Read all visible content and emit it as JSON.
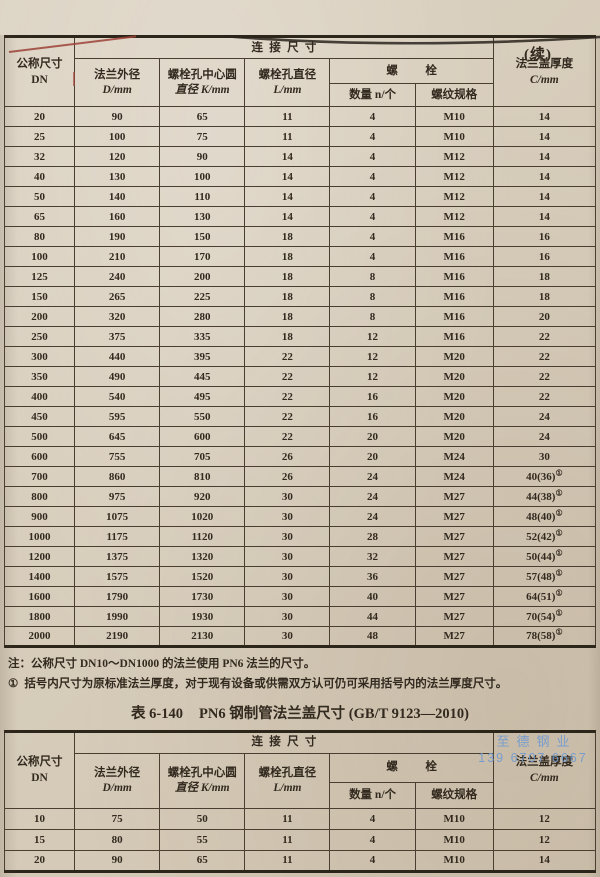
{
  "page": {
    "continued_label": "(续)"
  },
  "colors": {
    "paper": "#d6cbb9",
    "ink": "#332a1f",
    "border": "#4a3e30",
    "watermark_blue": "#6f9ad2",
    "artifact_red": "#9e4237"
  },
  "header_labels": {
    "nominal_l1": "公称尺寸",
    "nominal_l2": "DN",
    "conn": "连接尺寸",
    "d_l1": "法兰外径",
    "d_l2": "D/mm",
    "k_l1": "螺栓孔中心圆",
    "k_l2": "直径 K/mm",
    "l_l1": "螺栓孔直径",
    "l_l2": "L/mm",
    "bolt": "螺栓",
    "qty": "数量 n/个",
    "thread": "螺纹规格",
    "cover_l1": "法兰盖厚度",
    "cover_l2": "C/mm"
  },
  "table1": {
    "rows": [
      [
        "20",
        "90",
        "65",
        "11",
        "4",
        "M10",
        "14"
      ],
      [
        "25",
        "100",
        "75",
        "11",
        "4",
        "M10",
        "14"
      ],
      [
        "32",
        "120",
        "90",
        "14",
        "4",
        "M12",
        "14"
      ],
      [
        "40",
        "130",
        "100",
        "14",
        "4",
        "M12",
        "14"
      ],
      [
        "50",
        "140",
        "110",
        "14",
        "4",
        "M12",
        "14"
      ],
      [
        "65",
        "160",
        "130",
        "14",
        "4",
        "M12",
        "14"
      ],
      [
        "80",
        "190",
        "150",
        "18",
        "4",
        "M16",
        "16"
      ],
      [
        "100",
        "210",
        "170",
        "18",
        "4",
        "M16",
        "16"
      ],
      [
        "125",
        "240",
        "200",
        "18",
        "8",
        "M16",
        "18"
      ],
      [
        "150",
        "265",
        "225",
        "18",
        "8",
        "M16",
        "18"
      ],
      [
        "200",
        "320",
        "280",
        "18",
        "8",
        "M16",
        "20"
      ],
      [
        "250",
        "375",
        "335",
        "18",
        "12",
        "M16",
        "22"
      ],
      [
        "300",
        "440",
        "395",
        "22",
        "12",
        "M20",
        "22"
      ],
      [
        "350",
        "490",
        "445",
        "22",
        "12",
        "M20",
        "22"
      ],
      [
        "400",
        "540",
        "495",
        "22",
        "16",
        "M20",
        "22"
      ],
      [
        "450",
        "595",
        "550",
        "22",
        "16",
        "M20",
        "24"
      ],
      [
        "500",
        "645",
        "600",
        "22",
        "20",
        "M20",
        "24"
      ],
      [
        "600",
        "755",
        "705",
        "26",
        "20",
        "M24",
        "30"
      ],
      [
        "700",
        "860",
        "810",
        "26",
        "24",
        "M24",
        "40(36)①"
      ],
      [
        "800",
        "975",
        "920",
        "30",
        "24",
        "M27",
        "44(38)①"
      ],
      [
        "900",
        "1075",
        "1020",
        "30",
        "24",
        "M27",
        "48(40)①"
      ],
      [
        "1000",
        "1175",
        "1120",
        "30",
        "28",
        "M27",
        "52(42)①"
      ],
      [
        "1200",
        "1375",
        "1320",
        "30",
        "32",
        "M27",
        "50(44)①"
      ],
      [
        "1400",
        "1575",
        "1520",
        "30",
        "36",
        "M27",
        "57(48)①"
      ],
      [
        "1600",
        "1790",
        "1730",
        "30",
        "40",
        "M27",
        "64(51)①"
      ],
      [
        "1800",
        "1990",
        "1930",
        "30",
        "44",
        "M27",
        "70(54)①"
      ],
      [
        "2000",
        "2190",
        "2130",
        "30",
        "48",
        "M27",
        "78(58)①"
      ]
    ]
  },
  "notes": {
    "note": "注：公称尺寸 DN10～DN1000 的法兰使用 PN6 法兰的尺寸。",
    "footnote_mark": "①",
    "footnote": "括号内尺寸为原标准法兰厚度，对于现有设备或供需双方认可仍可采用括号内的法兰厚度尺寸。"
  },
  "table2": {
    "title_prefix": "表 6-140",
    "title_text": "PN6 钢制管法兰盖尺寸 (GB/T 9123—2010)",
    "rows": [
      [
        "10",
        "75",
        "50",
        "11",
        "4",
        "M10",
        "12"
      ],
      [
        "15",
        "80",
        "55",
        "11",
        "4",
        "M10",
        "12"
      ],
      [
        "20",
        "90",
        "65",
        "11",
        "4",
        "M10",
        "14"
      ]
    ]
  },
  "watermark": {
    "line1": "至德钢业",
    "line2": "139 6707 6667"
  }
}
